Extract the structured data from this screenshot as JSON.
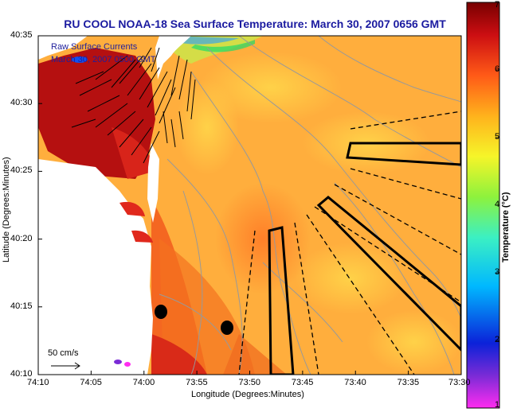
{
  "title": "RU COOL  NOAA-18  Sea Surface Temperature:  March 30, 2007 0656 GMT",
  "overlay": {
    "line1": "Raw Surface Currents",
    "line2": "March 30, 2007 0500 GMT"
  },
  "axes": {
    "xlabel": "Longitude (Degrees:Minutes)",
    "ylabel": "Latitude (Degrees:Minutes)",
    "x_ticks": [
      "74:10",
      "74:05",
      "74:00",
      "73:55",
      "73:50",
      "73:45",
      "73:40",
      "73:35",
      "73:30"
    ],
    "y_ticks": [
      "40:35",
      "40:30",
      "40:25",
      "40:20",
      "40:15",
      "40:10"
    ]
  },
  "colorbar": {
    "label": "Temperature (°C)",
    "ticks": [
      "7",
      "6",
      "5",
      "4",
      "3",
      "2",
      "1"
    ],
    "range": [
      1,
      7
    ],
    "colors": [
      "#ff2cf0",
      "#7a2bd6",
      "#0b22d9",
      "#00b8ff",
      "#3bf0c3",
      "#8df23d",
      "#f6f529",
      "#ffb21c",
      "#ff5a17",
      "#cc0e12",
      "#780000"
    ]
  },
  "scale": {
    "label": "50 cm/s"
  },
  "colors": {
    "land": "#ffffff",
    "warm_water": "#ffb24a",
    "hot_water": "#e83a1a",
    "title_blue": "#1a1aa0"
  }
}
